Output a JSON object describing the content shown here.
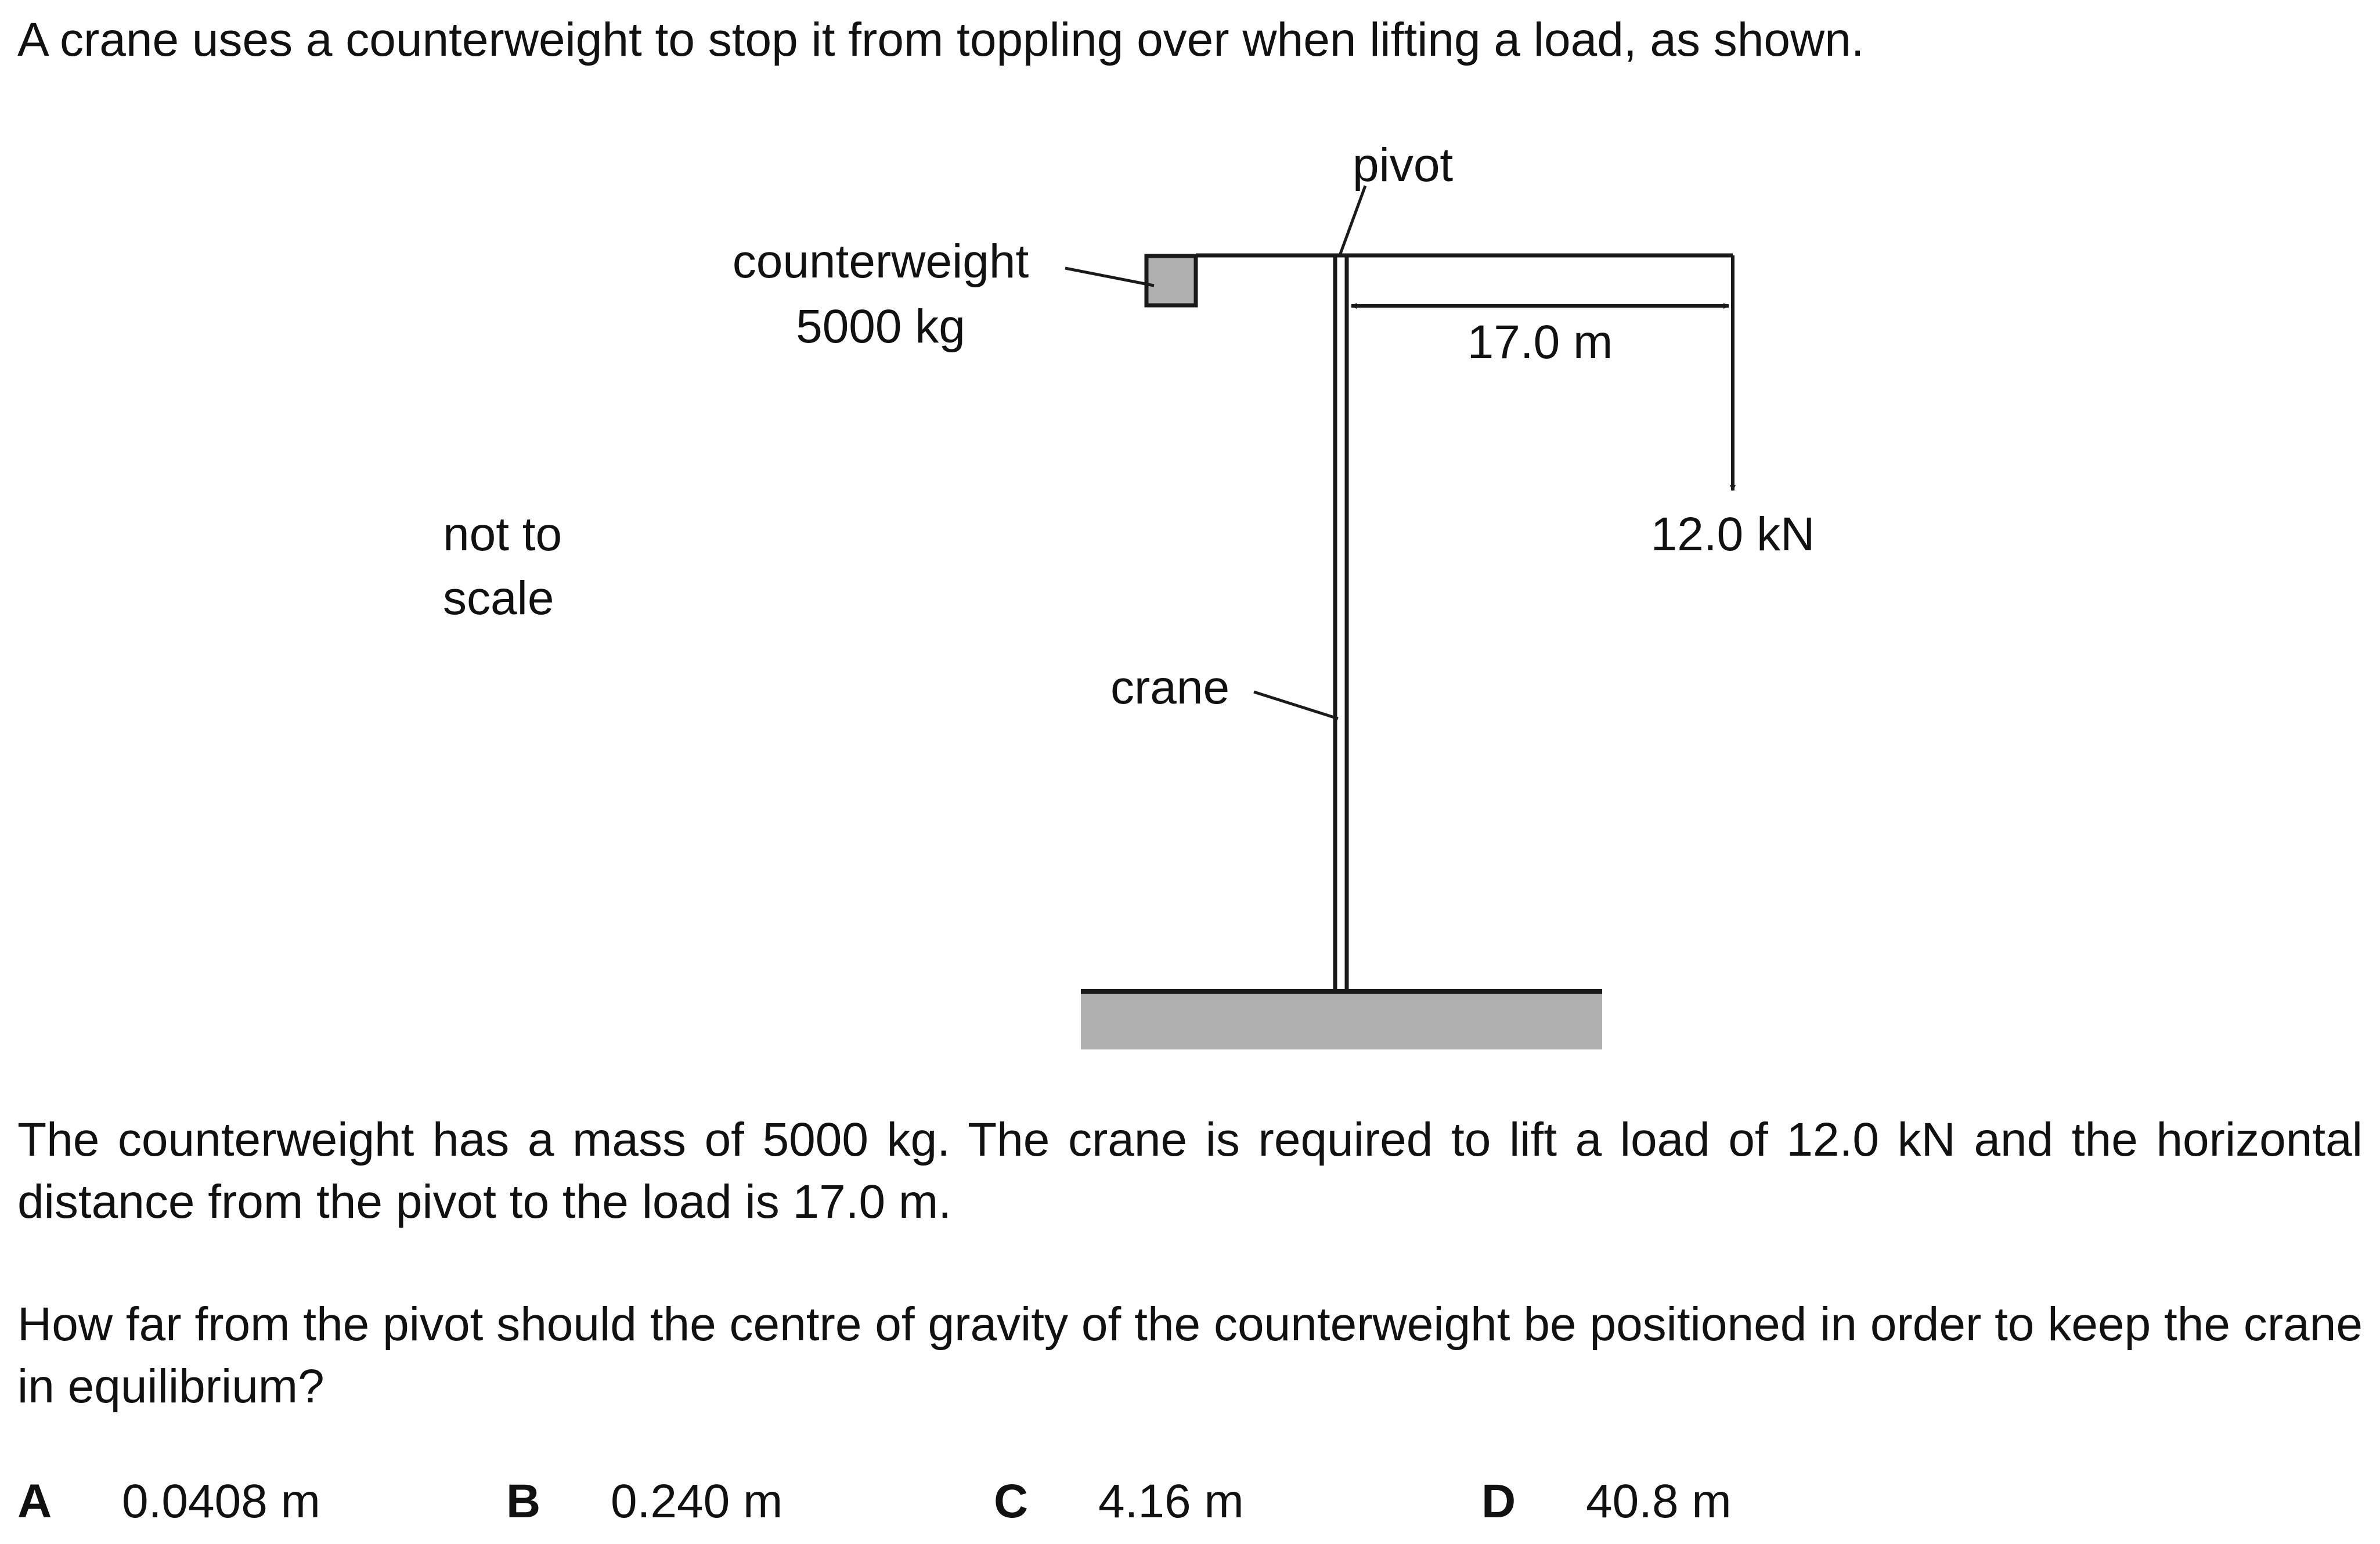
{
  "question": {
    "intro": "A crane uses a counterweight to stop it from toppling over when lifting a load, as shown.",
    "paragraph1": "The counterweight has a mass of 5000 kg. The crane is required to lift a load of 12.0 kN and the horizontal distance from the pivot to the load is 17.0 m.",
    "paragraph2": "How far from the pivot should the centre of gravity of the counterweight be positioned in order to keep the crane in equilibrium?"
  },
  "diagram": {
    "pivot_label": "pivot",
    "counterweight_label": "counterweight",
    "counterweight_mass": "5000 kg",
    "distance_label": "17.0 m",
    "load_label": "12.0 kN",
    "scale_note_line1": "not to",
    "scale_note_line2": "scale",
    "crane_label": "crane",
    "colors": {
      "counterweight_fill": "#b0b0b0",
      "ground_fill": "#b0b0b0",
      "line": "#1a1a1a"
    }
  },
  "options": [
    {
      "letter": "A",
      "value": "0.0408 m"
    },
    {
      "letter": "B",
      "value": "0.240 m"
    },
    {
      "letter": "C",
      "value": "4.16 m"
    },
    {
      "letter": "D",
      "value": "40.8 m"
    }
  ]
}
